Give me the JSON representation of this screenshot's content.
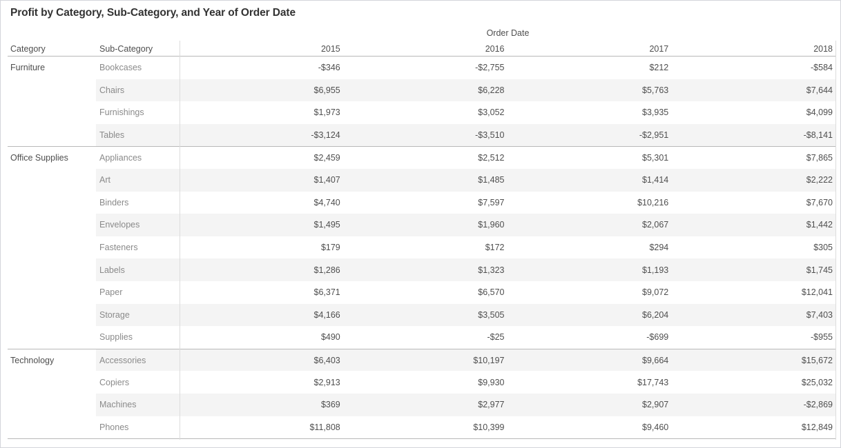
{
  "title": "Profit by Category, Sub-Category, and Year of Order Date",
  "header": {
    "category_label": "Category",
    "sub_category_label": "Sub-Category",
    "spanner_label": "Order Date"
  },
  "colors": {
    "banding": "#f4f4f4",
    "major_line": "#b8b8b8",
    "minor_line": "#dcdcdc",
    "dark_text": "#4e4e4e",
    "light_text": "#8a8a8a",
    "title_text": "#323232",
    "outer_border": "#d3d5da"
  },
  "chart_data": {
    "type": "table",
    "title": "Profit by Category, Sub-Category, and Year of Order Date",
    "column_spanner": "Order Date",
    "columns": [
      "2015",
      "2016",
      "2017",
      "2018"
    ],
    "row_dimensions": [
      "Category",
      "Sub-Category"
    ],
    "value_format": "currency_negative_leading_minus",
    "groups": [
      {
        "category": "Furniture",
        "rows": [
          {
            "sub_category": "Bookcases",
            "profits": [
              -346,
              -2755,
              212,
              -584
            ]
          },
          {
            "sub_category": "Chairs",
            "profits": [
              6955,
              6228,
              5763,
              7644
            ]
          },
          {
            "sub_category": "Furnishings",
            "profits": [
              1973,
              3052,
              3935,
              4099
            ]
          },
          {
            "sub_category": "Tables",
            "profits": [
              -3124,
              -3510,
              -2951,
              -8141
            ]
          }
        ]
      },
      {
        "category": "Office Supplies",
        "rows": [
          {
            "sub_category": "Appliances",
            "profits": [
              2459,
              2512,
              5301,
              7865
            ]
          },
          {
            "sub_category": "Art",
            "profits": [
              1407,
              1485,
              1414,
              2222
            ]
          },
          {
            "sub_category": "Binders",
            "profits": [
              4740,
              7597,
              10216,
              7670
            ]
          },
          {
            "sub_category": "Envelopes",
            "profits": [
              1495,
              1960,
              2067,
              1442
            ]
          },
          {
            "sub_category": "Fasteners",
            "profits": [
              179,
              172,
              294,
              305
            ]
          },
          {
            "sub_category": "Labels",
            "profits": [
              1286,
              1323,
              1193,
              1745
            ]
          },
          {
            "sub_category": "Paper",
            "profits": [
              6371,
              6570,
              9072,
              12041
            ]
          },
          {
            "sub_category": "Storage",
            "profits": [
              4166,
              3505,
              6204,
              7403
            ]
          },
          {
            "sub_category": "Supplies",
            "profits": [
              490,
              -25,
              -699,
              -955
            ]
          }
        ]
      },
      {
        "category": "Technology",
        "rows": [
          {
            "sub_category": "Accessories",
            "profits": [
              6403,
              10197,
              9664,
              15672
            ]
          },
          {
            "sub_category": "Copiers",
            "profits": [
              2913,
              9930,
              17743,
              25032
            ]
          },
          {
            "sub_category": "Machines",
            "profits": [
              369,
              2977,
              2907,
              -2869
            ]
          },
          {
            "sub_category": "Phones",
            "profits": [
              11808,
              10399,
              9460,
              12849
            ]
          }
        ]
      }
    ]
  }
}
